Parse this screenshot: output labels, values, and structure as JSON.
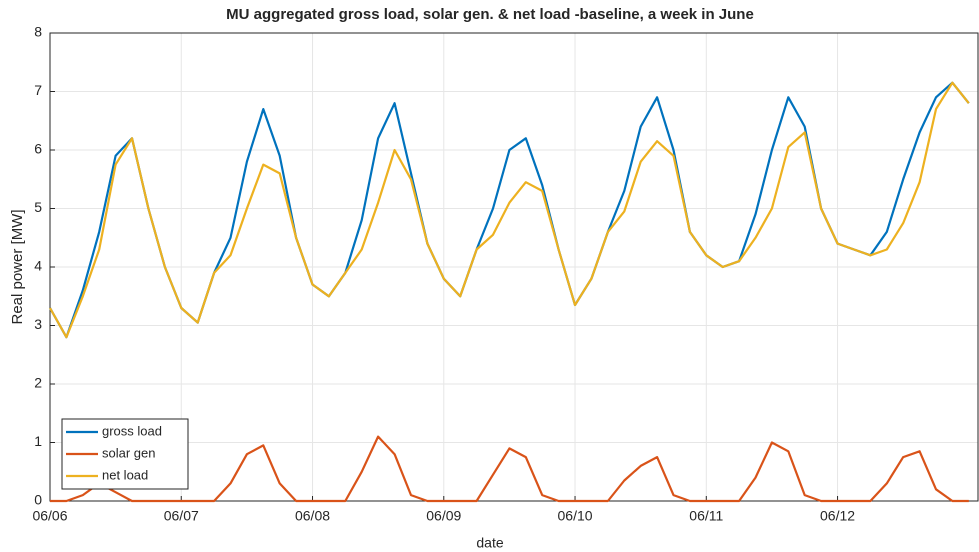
{
  "chart_data": {
    "type": "line",
    "title": "MU aggregated gross load, solar gen. & net load -baseline, a week in June",
    "x_label": "date",
    "y_label": "Real power [MW]",
    "x": [
      0,
      0.125,
      0.25,
      0.375,
      0.5,
      0.625,
      0.75,
      0.875,
      1,
      1.125,
      1.25,
      1.375,
      1.5,
      1.625,
      1.75,
      1.875,
      2,
      2.125,
      2.25,
      2.375,
      2.5,
      2.625,
      2.75,
      2.875,
      3,
      3.125,
      3.25,
      3.375,
      3.5,
      3.625,
      3.75,
      3.875,
      4,
      4.125,
      4.25,
      4.375,
      4.5,
      4.625,
      4.75,
      4.875,
      5,
      5.125,
      5.25,
      5.375,
      5.5,
      5.625,
      5.75,
      5.875,
      6,
      6.125,
      6.25,
      6.375,
      6.5,
      6.625,
      6.75,
      6.875,
      7
    ],
    "series": [
      {
        "name": "gross load",
        "color": "#0072bd",
        "values": [
          3.3,
          2.8,
          3.6,
          4.6,
          5.9,
          6.2,
          5.0,
          4.0,
          3.3,
          3.05,
          3.9,
          4.5,
          5.8,
          6.7,
          5.9,
          4.5,
          3.7,
          3.5,
          3.9,
          4.8,
          6.2,
          6.8,
          5.6,
          4.4,
          3.8,
          3.5,
          4.3,
          5.0,
          6.0,
          6.2,
          5.4,
          4.3,
          3.35,
          3.8,
          4.6,
          5.3,
          6.4,
          6.9,
          6.0,
          4.6,
          4.2,
          4.0,
          4.1,
          4.9,
          6.0,
          6.9,
          6.4,
          5.0,
          4.4,
          4.3,
          4.2,
          4.6,
          5.5,
          6.3,
          6.9,
          7.15,
          6.8
        ]
      },
      {
        "name": "solar gen",
        "color": "#d95319",
        "values": [
          0,
          0,
          0.1,
          0.3,
          0.15,
          0,
          0,
          0,
          0,
          0,
          0,
          0.3,
          0.8,
          0.95,
          0.3,
          0,
          0,
          0,
          0,
          0.5,
          1.1,
          0.8,
          0.1,
          0,
          0,
          0,
          0,
          0.45,
          0.9,
          0.75,
          0.1,
          0,
          0,
          0,
          0,
          0.35,
          0.6,
          0.75,
          0.1,
          0,
          0,
          0,
          0,
          0.4,
          1.0,
          0.85,
          0.1,
          0,
          0,
          0,
          0,
          0.3,
          0.75,
          0.85,
          0.2,
          0,
          0
        ]
      },
      {
        "name": "net load",
        "color": "#edb120",
        "values": [
          3.3,
          2.8,
          3.5,
          4.3,
          5.75,
          6.2,
          5.0,
          4.0,
          3.3,
          3.05,
          3.9,
          4.2,
          5.0,
          5.75,
          5.6,
          4.5,
          3.7,
          3.5,
          3.9,
          4.3,
          5.1,
          6.0,
          5.5,
          4.4,
          3.8,
          3.5,
          4.3,
          4.55,
          5.1,
          5.45,
          5.3,
          4.3,
          3.35,
          3.8,
          4.6,
          4.95,
          5.8,
          6.15,
          5.9,
          4.6,
          4.2,
          4.0,
          4.1,
          4.5,
          5.0,
          6.05,
          6.3,
          5.0,
          4.4,
          4.3,
          4.2,
          4.3,
          4.75,
          5.45,
          6.7,
          7.15,
          6.8
        ]
      }
    ],
    "xlim": [
      0,
      7.07
    ],
    "xticks": [
      {
        "value": 0,
        "label": "06/06"
      },
      {
        "value": 1,
        "label": "06/07"
      },
      {
        "value": 2,
        "label": "06/08"
      },
      {
        "value": 3,
        "label": "06/09"
      },
      {
        "value": 4,
        "label": "06/10"
      },
      {
        "value": 5,
        "label": "06/11"
      },
      {
        "value": 6,
        "label": "06/12"
      }
    ],
    "ylim": [
      0,
      8
    ],
    "yticks": [
      0,
      1,
      2,
      3,
      4,
      5,
      6,
      7,
      8
    ],
    "grid": true,
    "legend": "lower left"
  }
}
